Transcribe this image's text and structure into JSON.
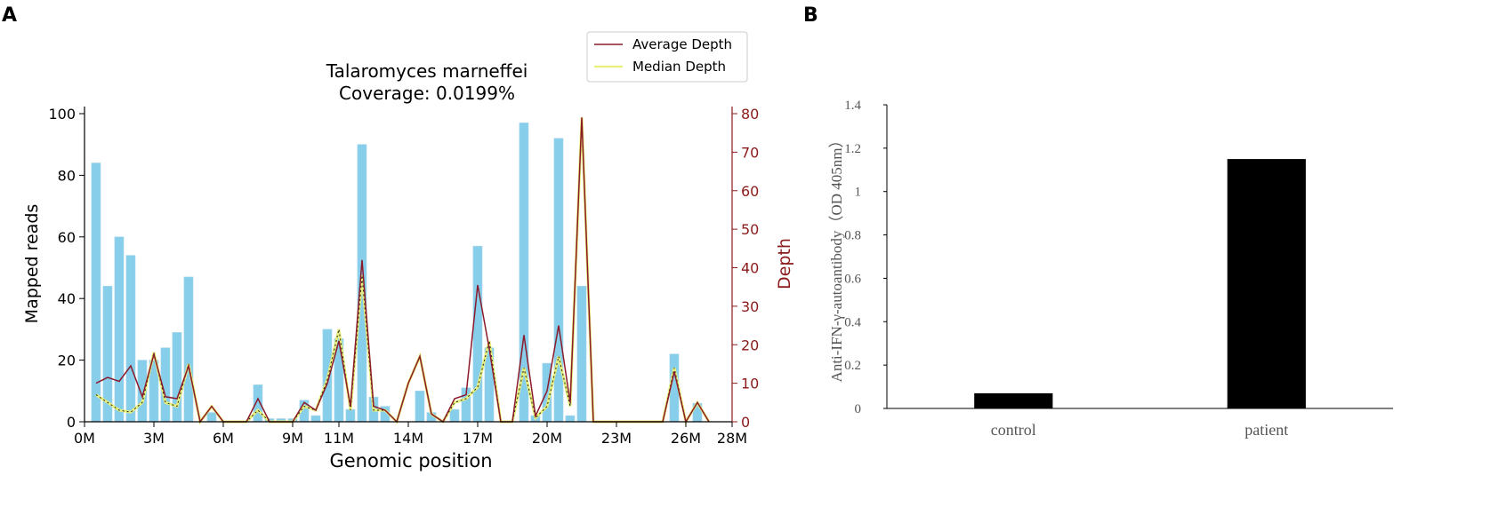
{
  "panels": {
    "a": {
      "label": "A"
    },
    "b": {
      "label": "B"
    }
  },
  "colors": {
    "bars": "#87CEEB",
    "average_line": "#8B1A2B",
    "median_line": "#E8F07A",
    "median_dots": "#222222",
    "depth_axis": "#8B1A1A",
    "panel_b_bar": "#000000"
  },
  "chart_data": [
    {
      "type": "bar",
      "panel": "A",
      "title": "Talaromyces marneffei",
      "subtitle": "Coverage: 0.0199%",
      "xlabel": "Genomic position",
      "ylabel": "Mapped reads",
      "y2label": "Depth",
      "xlim": [
        0,
        28
      ],
      "ylim": [
        0,
        100
      ],
      "y2lim": [
        0,
        80
      ],
      "xticks": [
        0,
        3,
        6,
        9,
        11,
        14,
        17,
        20,
        23,
        26,
        28
      ],
      "xtick_labels": [
        "0M",
        "3M",
        "6M",
        "9M",
        "11M",
        "14M",
        "17M",
        "20M",
        "23M",
        "26M",
        "28M"
      ],
      "yticks": [
        0,
        20,
        40,
        60,
        80,
        100
      ],
      "y2ticks": [
        0,
        10,
        20,
        30,
        40,
        50,
        60,
        70,
        80
      ],
      "legend": {
        "position": "top-right",
        "entries": [
          "Average Depth",
          "Median Depth"
        ]
      },
      "positions": [
        0.5,
        1.0,
        1.5,
        2.0,
        2.5,
        3.0,
        3.5,
        4.0,
        4.5,
        5.0,
        5.5,
        6.0,
        6.5,
        7.0,
        7.5,
        8.0,
        8.5,
        9.0,
        9.5,
        10.0,
        10.5,
        11.0,
        11.5,
        12.0,
        12.5,
        13.0,
        13.5,
        14.0,
        14.5,
        15.0,
        15.5,
        16.0,
        16.5,
        17.0,
        17.5,
        18.0,
        18.5,
        19.0,
        19.5,
        20.0,
        20.5,
        21.0,
        21.5,
        22.0,
        22.5,
        23.0,
        23.5,
        24.0,
        24.5,
        25.0,
        25.5,
        26.0,
        26.5,
        27.0
      ],
      "series": [
        {
          "name": "Mapped reads",
          "axis": "left",
          "values": [
            84,
            44,
            60,
            54,
            20,
            20,
            24,
            29,
            47,
            0,
            3,
            0,
            0,
            0,
            12,
            1,
            1,
            1,
            7,
            2,
            30,
            27,
            4,
            90,
            8,
            5,
            0,
            0,
            10,
            3,
            0,
            4,
            11,
            57,
            24,
            0,
            0,
            97,
            2,
            19,
            92,
            2,
            44,
            0,
            0,
            0,
            0,
            0,
            0,
            0,
            22,
            0,
            6,
            0
          ]
        },
        {
          "name": "Average Depth",
          "axis": "right",
          "values": [
            10,
            11.5,
            10.5,
            14.5,
            6.5,
            17.5,
            6.5,
            6,
            14.5,
            0,
            4,
            0,
            0,
            0,
            6,
            0,
            0,
            0,
            5,
            3,
            10,
            21,
            4,
            42,
            4,
            3,
            0,
            10,
            17,
            2,
            0,
            6,
            7,
            35.5,
            19,
            0,
            0,
            22.5,
            1.5,
            8,
            25,
            5,
            79,
            0,
            0,
            0,
            0,
            0,
            0,
            0,
            13,
            0,
            5,
            0
          ]
        },
        {
          "name": "Median Depth",
          "axis": "right",
          "values": [
            7,
            5,
            3,
            2.5,
            5,
            18,
            5,
            4,
            15,
            0,
            4,
            0,
            0,
            0,
            3,
            0,
            0,
            0,
            4,
            3,
            11,
            24,
            3,
            38,
            3,
            3,
            0,
            10,
            17,
            2,
            0,
            5,
            6,
            9,
            21,
            0,
            0,
            14,
            1,
            4,
            17,
            4,
            79,
            0,
            0,
            0,
            0,
            0,
            0,
            0,
            14,
            0,
            5,
            0
          ]
        }
      ]
    },
    {
      "type": "bar",
      "panel": "B",
      "title": "",
      "xlabel": "",
      "ylabel": "Anti-IFN-γ-autoantibody（OD 405nm）",
      "categories": [
        "control",
        "patient"
      ],
      "values": [
        0.07,
        1.15
      ],
      "ylim": [
        0,
        1.4
      ],
      "yticks": [
        0,
        0.2,
        0.4,
        0.6,
        0.8,
        1.0,
        1.2,
        1.4
      ],
      "ytick_labels": [
        "0",
        "0.2",
        "0.4",
        "0.6",
        "0.8",
        "1",
        "1.2",
        "1.4"
      ]
    }
  ]
}
